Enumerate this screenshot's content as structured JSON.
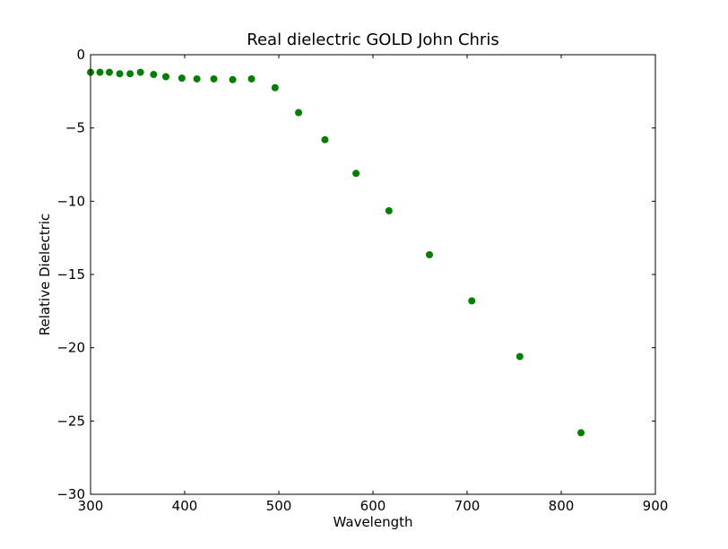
{
  "chart_data": {
    "type": "scatter",
    "title": "Real dielectric GOLD John Chris",
    "xlabel": "Wavelength",
    "ylabel": "Relative Dielectric",
    "xlim": [
      300,
      900
    ],
    "ylim": [
      -30,
      0
    ],
    "xticks": [
      300,
      400,
      500,
      600,
      700,
      800,
      900
    ],
    "yticks": [
      0,
      -5,
      -10,
      -15,
      -20,
      -25,
      -30
    ],
    "xtick_labels": [
      "300",
      "400",
      "500",
      "600",
      "700",
      "800",
      "900"
    ],
    "ytick_labels": [
      "0",
      "−5",
      "−10",
      "−15",
      "−20",
      "−25",
      "−30"
    ],
    "grid": false,
    "marker_color": "#007f00",
    "x": [
      300,
      310,
      320,
      331,
      342,
      353,
      367,
      380,
      397,
      413,
      431,
      451,
      471,
      496,
      521,
      549,
      582,
      617,
      660,
      705,
      756,
      821
    ],
    "y": [
      -1.2,
      -1.2,
      -1.2,
      -1.3,
      -1.3,
      -1.2,
      -1.35,
      -1.5,
      -1.6,
      -1.65,
      -1.65,
      -1.7,
      -1.65,
      -2.25,
      -3.95,
      -5.8,
      -8.1,
      -10.65,
      -13.65,
      -16.8,
      -20.6,
      -25.8
    ]
  }
}
